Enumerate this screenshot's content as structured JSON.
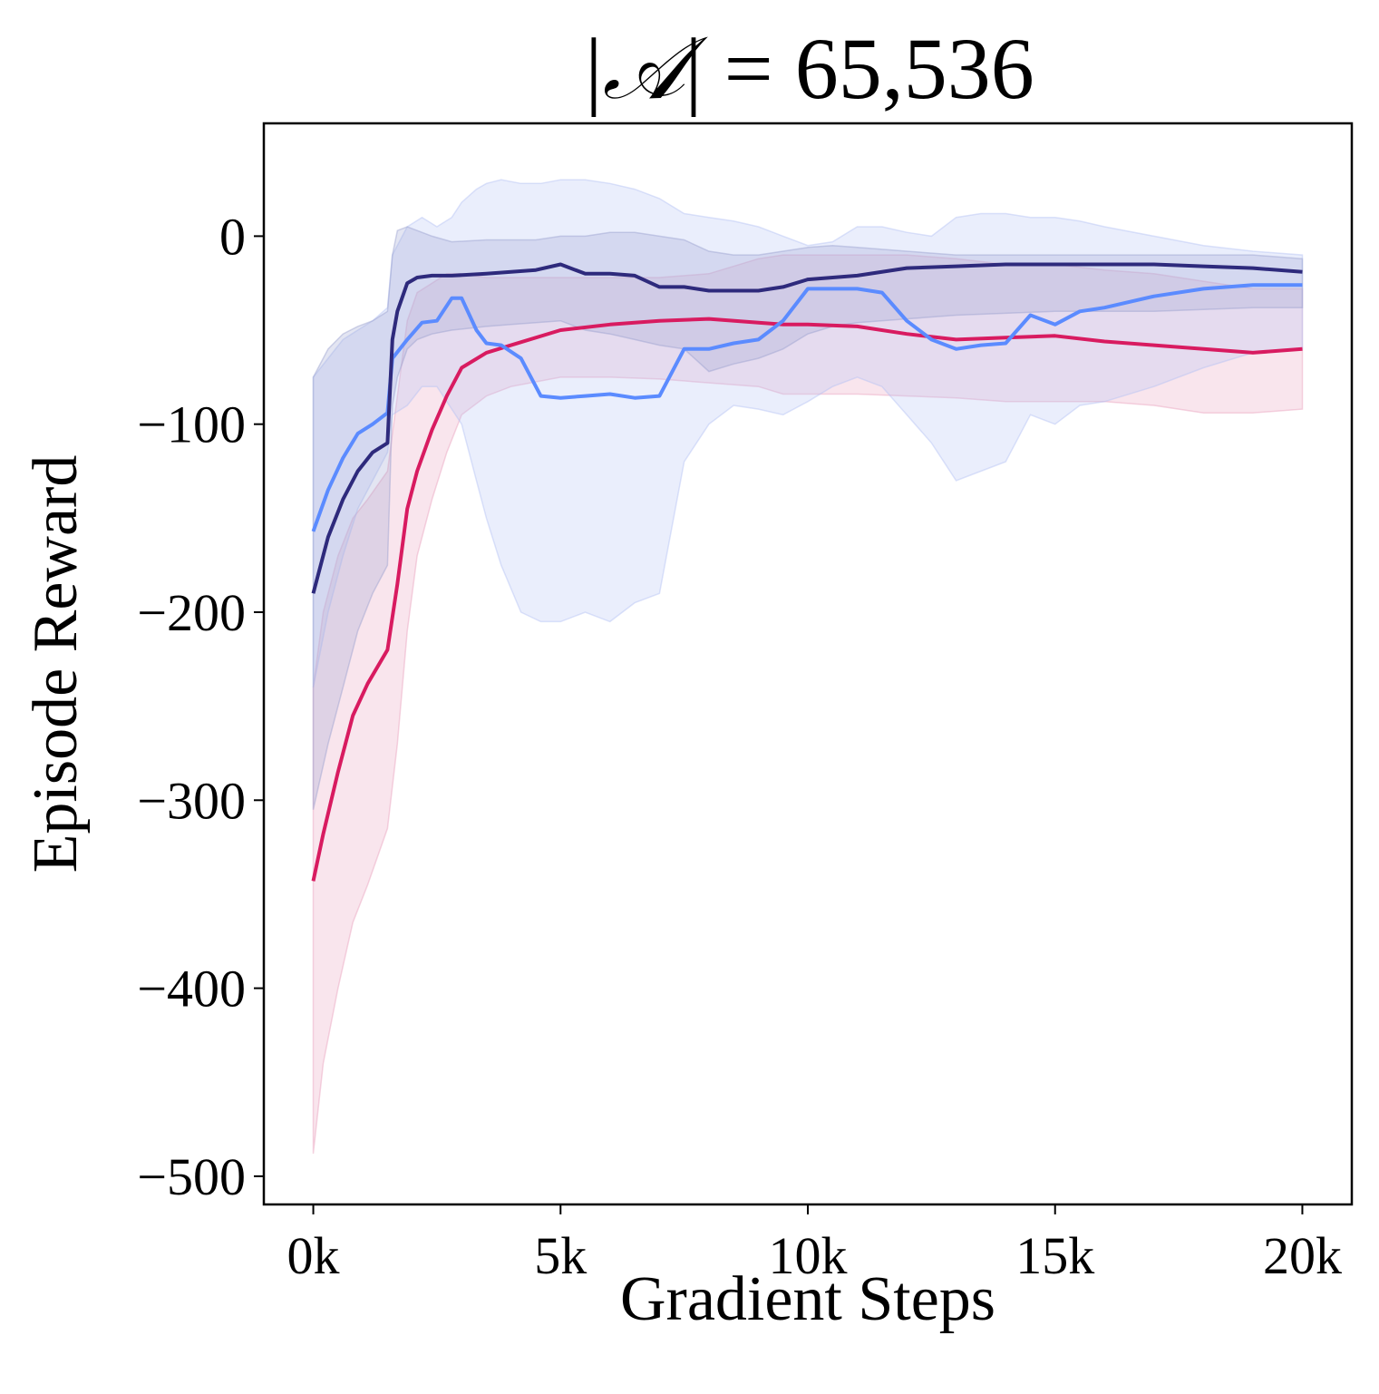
{
  "chart_data": {
    "type": "line",
    "title_prefix": "|",
    "title_symbol": "𝒜",
    "title_suffix": "| =  65,536",
    "xlabel": "Gradient Steps",
    "ylabel": "Episode Reward",
    "xlim": [
      -1000,
      21000
    ],
    "ylim": [
      -515,
      60
    ],
    "xticks": [
      0,
      5000,
      10000,
      15000,
      20000
    ],
    "xtick_labels": [
      "0k",
      "5k",
      "10k",
      "15k",
      "20k"
    ],
    "yticks": [
      0,
      -100,
      -200,
      -300,
      -400,
      -500
    ],
    "ytick_labels": [
      "0",
      "−100",
      "−200",
      "−300",
      "−400",
      "−500"
    ],
    "grid": false,
    "legend": false,
    "series": [
      {
        "color": "#e8a0bd",
        "line_color": "#d81b60",
        "x": [
          0,
          200,
          500,
          800,
          1100,
          1500,
          1700,
          1900,
          2100,
          2400,
          2700,
          3000,
          3500,
          4000,
          5000,
          6000,
          7000,
          8000,
          9000,
          9500,
          10000,
          11000,
          12000,
          13000,
          14000,
          15000,
          16000,
          17000,
          18000,
          19000,
          20000
        ],
        "mean": [
          -343,
          -318,
          -285,
          -255,
          -238,
          -220,
          -185,
          -145,
          -125,
          -103,
          -85,
          -70,
          -62,
          -58,
          -50,
          -47,
          -45,
          -44,
          -46,
          -47,
          -47,
          -48,
          -52,
          -55,
          -54,
          -53,
          -56,
          -58,
          -60,
          -62,
          -60
        ],
        "lower": [
          -488,
          -440,
          -400,
          -365,
          -345,
          -315,
          -270,
          -210,
          -170,
          -140,
          -115,
          -95,
          -85,
          -80,
          -75,
          -75,
          -76,
          -78,
          -80,
          -84,
          -84,
          -84,
          -85,
          -86,
          -88,
          -88,
          -88,
          -90,
          -94,
          -94,
          -92
        ],
        "upper": [
          -240,
          -200,
          -170,
          -150,
          -140,
          -125,
          -85,
          -45,
          -30,
          -25,
          -20,
          -20,
          -22,
          -22,
          -22,
          -22,
          -22,
          -20,
          -12,
          -10,
          -10,
          -10,
          -10,
          -12,
          -15,
          -15,
          -18,
          -20,
          -24,
          -28,
          -28
        ]
      },
      {
        "color": "#b4c2f5",
        "line_color": "#5b8bff",
        "x": [
          0,
          300,
          600,
          900,
          1200,
          1500,
          1600,
          1900,
          2200,
          2500,
          2800,
          3000,
          3300,
          3500,
          3800,
          4200,
          4600,
          5000,
          5500,
          6000,
          6500,
          7000,
          7500,
          8000,
          8500,
          9000,
          9500,
          10000,
          10500,
          11000,
          11500,
          12000,
          12500,
          13000,
          13500,
          14000,
          14500,
          15000,
          15500,
          16000,
          17000,
          18000,
          19000,
          20000
        ],
        "mean": [
          -157,
          -135,
          -118,
          -105,
          -100,
          -94,
          -65,
          -55,
          -46,
          -45,
          -33,
          -33,
          -50,
          -57,
          -58,
          -65,
          -85,
          -86,
          -85,
          -84,
          -86,
          -85,
          -60,
          -60,
          -57,
          -55,
          -45,
          -28,
          -28,
          -28,
          -30,
          -45,
          -55,
          -60,
          -58,
          -57,
          -42,
          -47,
          -40,
          -38,
          -32,
          -28,
          -26,
          -26
        ],
        "lower": [
          -240,
          -200,
          -170,
          -145,
          -130,
          -115,
          -95,
          -90,
          -80,
          -80,
          -92,
          -100,
          -130,
          -150,
          -175,
          -200,
          -205,
          -205,
          -200,
          -205,
          -195,
          -190,
          -120,
          -100,
          -90,
          -92,
          -95,
          -88,
          -80,
          -75,
          -80,
          -95,
          -110,
          -130,
          -125,
          -120,
          -95,
          -100,
          -90,
          -88,
          -80,
          -70,
          -62,
          -60
        ],
        "upper": [
          -75,
          -65,
          -55,
          -50,
          -45,
          -38,
          -10,
          5,
          10,
          5,
          10,
          18,
          25,
          28,
          30,
          28,
          28,
          30,
          30,
          28,
          25,
          20,
          12,
          10,
          8,
          5,
          0,
          -5,
          -3,
          5,
          5,
          2,
          0,
          10,
          12,
          12,
          10,
          10,
          8,
          5,
          0,
          -5,
          -8,
          -10
        ]
      },
      {
        "color": "#9aa0cf",
        "line_color": "#2e2a7c",
        "x": [
          0,
          300,
          600,
          900,
          1200,
          1500,
          1600,
          1700,
          1900,
          2100,
          2400,
          2800,
          3500,
          4000,
          4500,
          5000,
          5500,
          6000,
          6500,
          7000,
          7500,
          8000,
          8500,
          9000,
          9500,
          10000,
          10500,
          11000,
          12000,
          13000,
          14000,
          15000,
          16000,
          17000,
          18000,
          19000,
          20000
        ],
        "mean": [
          -190,
          -160,
          -140,
          -125,
          -115,
          -110,
          -55,
          -40,
          -25,
          -22,
          -21,
          -21,
          -20,
          -19,
          -18,
          -15,
          -20,
          -20,
          -21,
          -27,
          -27,
          -29,
          -29,
          -29,
          -27,
          -23,
          -22,
          -21,
          -17,
          -16,
          -15,
          -15,
          -15,
          -15,
          -16,
          -17,
          -19
        ],
        "lower": [
          -305,
          -270,
          -240,
          -210,
          -190,
          -175,
          -90,
          -75,
          -60,
          -55,
          -52,
          -50,
          -48,
          -47,
          -46,
          -45,
          -50,
          -52,
          -55,
          -58,
          -60,
          -72,
          -68,
          -65,
          -60,
          -52,
          -48,
          -46,
          -44,
          -42,
          -41,
          -40,
          -40,
          -40,
          -39,
          -38,
          -38
        ],
        "upper": [
          -75,
          -60,
          -52,
          -48,
          -45,
          -40,
          -10,
          3,
          5,
          3,
          0,
          -3,
          -2,
          -2,
          -2,
          0,
          0,
          2,
          2,
          0,
          -2,
          -8,
          -10,
          -10,
          -8,
          -6,
          -5,
          -6,
          -8,
          -10,
          -10,
          -10,
          -10,
          -10,
          -10,
          -10,
          -12
        ]
      }
    ]
  }
}
